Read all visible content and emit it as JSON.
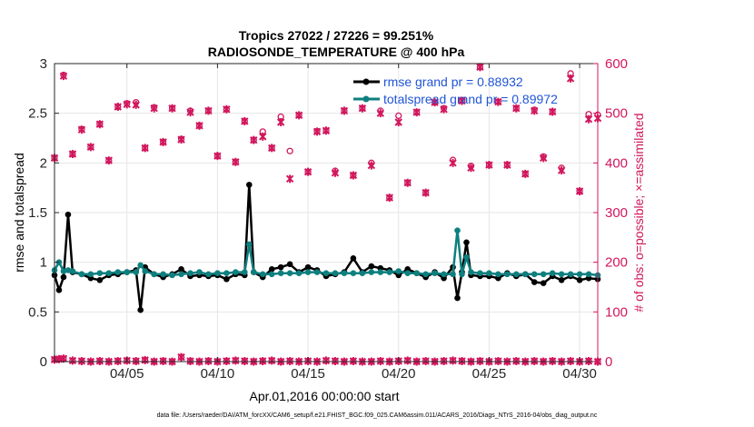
{
  "chart_data": {
    "type": "line",
    "title": [
      "Tropics 27022 / 27226 = 99.251%",
      "RADIOSONDE_TEMPERATURE @ 400 hPa"
    ],
    "xlabel": "Apr.01,2016 00:00:00 start",
    "ylabel_left": "rmse and totalspread",
    "ylabel_right": "# of obs: o=possible; ×=assimilated",
    "xlim": [
      1,
      31
    ],
    "ylim_left": [
      0,
      3
    ],
    "ylim_right": [
      0,
      600
    ],
    "x_ticks": [
      5,
      10,
      15,
      20,
      25,
      30
    ],
    "x_tick_labels": [
      "04/05",
      "04/10",
      "04/15",
      "04/20",
      "04/25",
      "04/30"
    ],
    "y_ticks_left": [
      0,
      0.5,
      1,
      1.5,
      2,
      2.5,
      3
    ],
    "y_tick_labels_left": [
      "0",
      "0.5",
      "1",
      "1.5",
      "2",
      "2.5",
      "3"
    ],
    "y_ticks_right": [
      0,
      100,
      200,
      300,
      400,
      500,
      600
    ],
    "y_tick_labels_right": [
      "0",
      "100",
      "200",
      "300",
      "400",
      "500",
      "600"
    ],
    "x": [
      1.0,
      1.25,
      1.5,
      1.75,
      2.0,
      2.5,
      3.0,
      3.5,
      4.0,
      4.5,
      5.0,
      5.5,
      5.75,
      6.0,
      6.5,
      7.0,
      7.5,
      8.0,
      8.5,
      9.0,
      9.5,
      10.0,
      10.5,
      11.0,
      11.5,
      11.75,
      12.0,
      12.5,
      13.0,
      13.5,
      14.0,
      14.5,
      15.0,
      15.5,
      16.0,
      16.5,
      17.0,
      17.5,
      18.0,
      18.5,
      19.0,
      19.5,
      20.0,
      20.5,
      21.0,
      21.5,
      22.0,
      22.5,
      23.0,
      23.25,
      23.5,
      23.75,
      24.0,
      24.5,
      25.0,
      25.5,
      26.0,
      26.5,
      27.0,
      27.5,
      28.0,
      28.5,
      29.0,
      29.5,
      30.0,
      30.5,
      31.0
    ],
    "series": [
      {
        "name": "rmse",
        "legend": "rmse grand pr = 0.88932",
        "color": "#000000",
        "axis": "left",
        "values": [
          0.87,
          0.72,
          0.85,
          1.48,
          0.9,
          0.88,
          0.84,
          0.82,
          0.87,
          0.88,
          0.9,
          0.92,
          0.52,
          0.95,
          0.88,
          0.85,
          0.88,
          0.93,
          0.86,
          0.87,
          0.86,
          0.87,
          0.83,
          0.88,
          0.87,
          1.78,
          0.9,
          0.85,
          0.93,
          0.95,
          0.98,
          0.9,
          0.95,
          0.92,
          0.86,
          0.88,
          0.9,
          1.04,
          0.9,
          0.96,
          0.94,
          0.92,
          0.87,
          0.93,
          0.89,
          0.85,
          0.9,
          0.84,
          0.95,
          0.64,
          0.9,
          1.2,
          0.87,
          0.86,
          0.86,
          0.84,
          0.89,
          0.86,
          0.88,
          0.8,
          0.79,
          0.86,
          0.82,
          0.86,
          0.82,
          0.84,
          0.83
        ]
      },
      {
        "name": "totalspread",
        "legend": "totalspread grand pr = 0.89972",
        "color": "#0e7f7f",
        "axis": "left",
        "values": [
          0.92,
          1.0,
          0.91,
          0.92,
          0.91,
          0.88,
          0.88,
          0.89,
          0.89,
          0.9,
          0.9,
          0.9,
          0.97,
          0.91,
          0.88,
          0.88,
          0.87,
          0.88,
          0.89,
          0.9,
          0.88,
          0.89,
          0.89,
          0.9,
          0.9,
          1.18,
          0.9,
          0.88,
          0.88,
          0.89,
          0.89,
          0.89,
          0.9,
          0.9,
          0.89,
          0.89,
          0.89,
          0.89,
          0.89,
          0.9,
          0.9,
          0.9,
          0.91,
          0.89,
          0.89,
          0.88,
          0.89,
          0.88,
          0.88,
          1.32,
          0.88,
          1.05,
          0.9,
          0.89,
          0.89,
          0.88,
          0.88,
          0.88,
          0.88,
          0.88,
          0.88,
          0.89,
          0.88,
          0.88,
          0.88,
          0.88,
          0.87
        ]
      }
    ],
    "obs_top": {
      "axis": "right",
      "color": "#d1175d",
      "x": [
        1.0,
        1.5,
        2.0,
        2.5,
        3.0,
        3.5,
        4.0,
        4.5,
        5.0,
        5.5,
        6.0,
        6.5,
        7.0,
        7.5,
        8.0,
        8.5,
        9.0,
        9.5,
        10.0,
        10.5,
        11.0,
        11.5,
        12.0,
        12.5,
        13.0,
        13.5,
        14.0,
        14.5,
        15.0,
        15.5,
        16.0,
        16.5,
        17.0,
        17.5,
        18.0,
        18.5,
        19.0,
        19.5,
        20.0,
        20.5,
        21.0,
        21.5,
        22.0,
        22.5,
        23.0,
        23.5,
        24.0,
        24.5,
        25.0,
        25.5,
        26.0,
        26.5,
        27.0,
        27.5,
        28.0,
        28.5,
        29.0,
        29.5,
        30.0,
        30.5,
        31.0
      ],
      "possible": [
        410,
        577,
        418,
        468,
        432,
        478,
        405,
        513,
        520,
        522,
        430,
        512,
        442,
        510,
        448,
        505,
        475,
        505,
        414,
        508,
        402,
        484,
        446,
        463,
        430,
        493,
        424,
        496,
        382,
        464,
        465,
        384,
        505,
        375,
        510,
        400,
        505,
        330,
        495,
        360,
        502,
        340,
        522,
        510,
        406,
        525,
        394,
        593,
        396,
        523,
        396,
        510,
        378,
        507,
        413,
        503,
        390,
        580,
        343,
        498,
        497
      ],
      "assimilated": [
        410,
        575,
        418,
        467,
        432,
        478,
        405,
        513,
        518,
        517,
        430,
        510,
        442,
        510,
        447,
        502,
        475,
        505,
        414,
        508,
        402,
        484,
        446,
        453,
        430,
        482,
        368,
        496,
        382,
        463,
        465,
        380,
        505,
        375,
        510,
        395,
        500,
        330,
        482,
        360,
        502,
        340,
        522,
        508,
        400,
        525,
        390,
        593,
        396,
        523,
        396,
        510,
        378,
        505,
        410,
        503,
        385,
        570,
        343,
        488,
        490
      ]
    },
    "obs_bottom": {
      "axis": "right",
      "color": "#d1175d",
      "x": [
        1.0,
        1.25,
        1.5,
        2.0,
        2.5,
        3.0,
        3.5,
        4.0,
        4.5,
        5.0,
        5.5,
        6.0,
        6.5,
        7.0,
        7.5,
        8.0,
        8.5,
        9.0,
        9.5,
        10.0,
        10.5,
        11.0,
        11.5,
        12.0,
        12.5,
        13.0,
        13.5,
        14.0,
        14.5,
        15.0,
        15.5,
        16.0,
        16.5,
        17.0,
        17.5,
        18.0,
        18.5,
        19.0,
        19.5,
        20.0,
        20.5,
        21.0,
        21.5,
        22.0,
        22.5,
        23.0,
        23.5,
        24.0,
        24.5,
        25.0,
        25.5,
        26.0,
        26.5,
        27.0,
        27.5,
        28.0,
        28.5,
        29.0,
        29.5,
        30.0,
        30.5,
        31.0
      ],
      "possible": [
        4,
        5,
        6,
        2,
        1,
        0,
        1,
        0,
        1,
        2,
        1,
        3,
        0,
        1,
        0,
        9,
        1,
        0,
        1,
        0,
        1,
        2,
        1,
        0,
        1,
        2,
        0,
        1,
        0,
        1,
        0,
        2,
        1,
        0,
        1,
        0,
        0,
        1,
        0,
        1,
        2,
        0,
        1,
        0,
        1,
        2,
        1,
        0,
        1,
        0,
        1,
        0,
        1,
        0,
        1,
        0,
        1,
        0,
        1,
        0,
        1,
        0
      ],
      "assimilated": [
        4,
        5,
        6,
        2,
        1,
        0,
        1,
        0,
        1,
        2,
        1,
        3,
        0,
        1,
        0,
        9,
        1,
        0,
        1,
        0,
        1,
        2,
        1,
        0,
        1,
        2,
        0,
        1,
        0,
        1,
        0,
        2,
        1,
        0,
        1,
        0,
        0,
        1,
        0,
        1,
        2,
        0,
        1,
        0,
        1,
        2,
        1,
        0,
        1,
        0,
        1,
        0,
        1,
        0,
        1,
        0,
        1,
        0,
        1,
        0,
        1,
        0
      ]
    },
    "grid": true,
    "legend_position": "top-right",
    "footnote": "data file: /Users/raeder/DAI/ATM_forcXX/CAM6_setup/f.e21.FHIST_BGC.f09_025.CAM6assim.011/ACARS_2016/Diags_NTrS_2016-04/obs_diag_output.nc"
  }
}
